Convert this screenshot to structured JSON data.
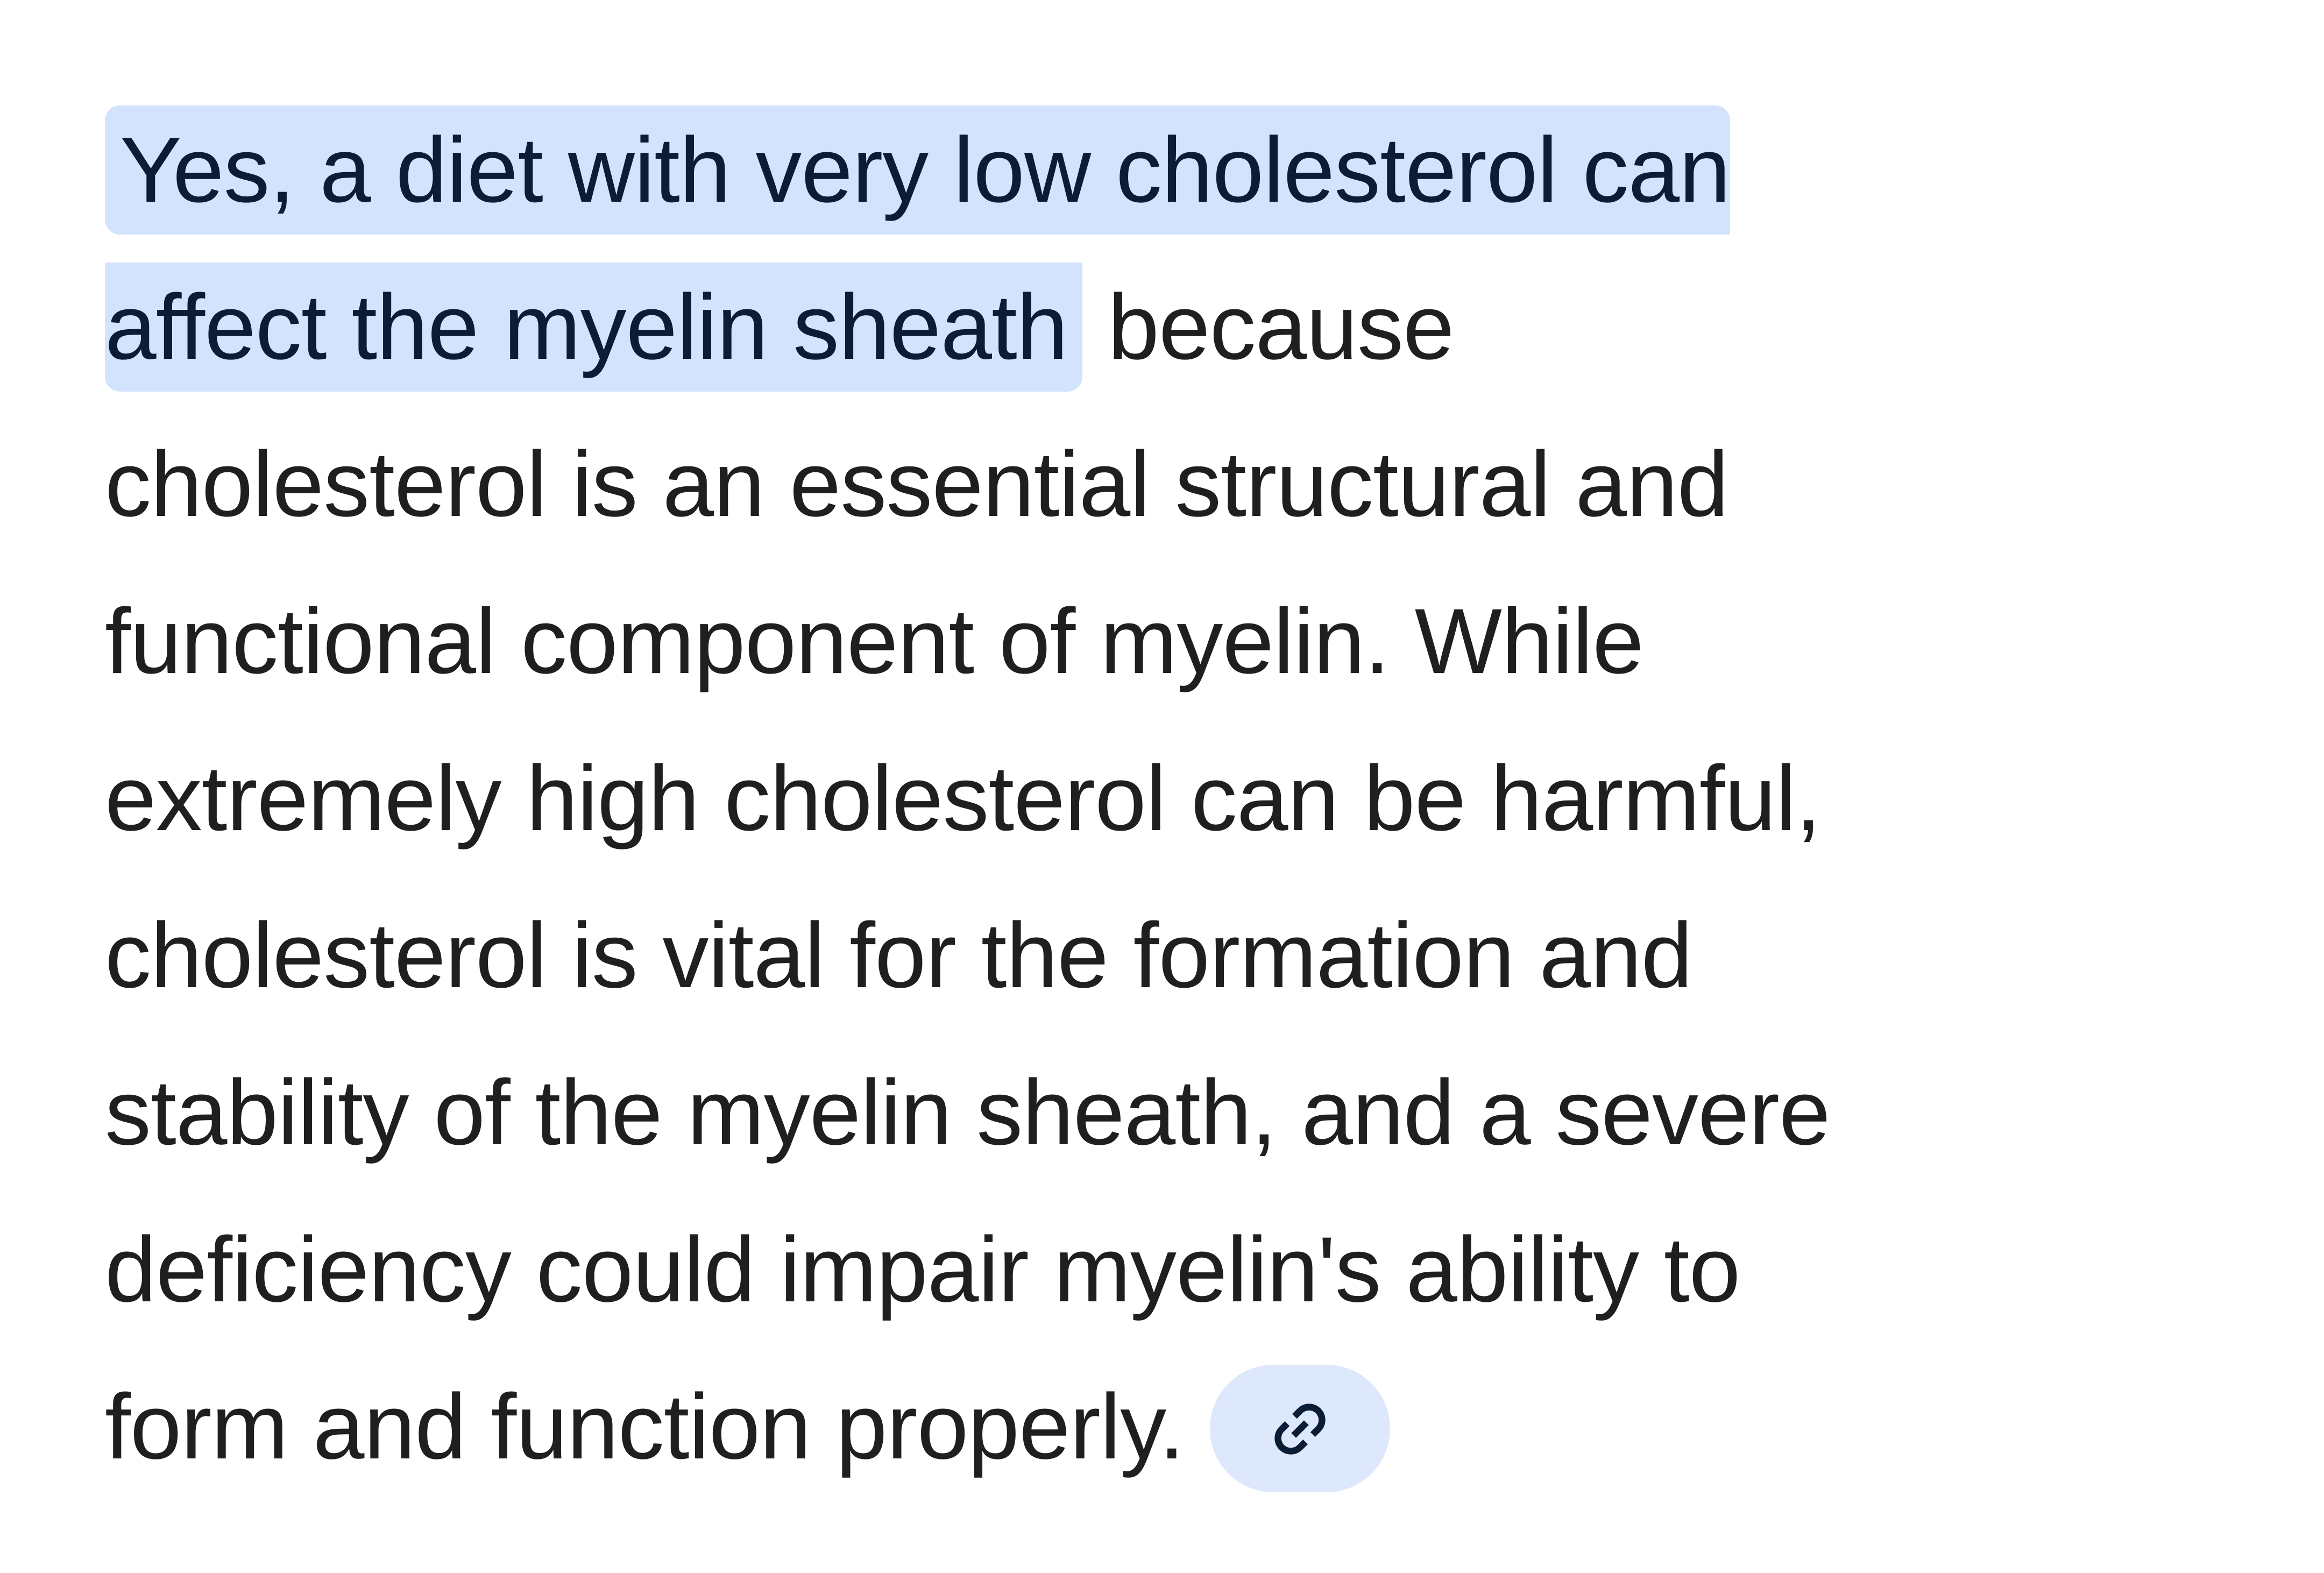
{
  "answer": {
    "highlighted_lines": [
      "Yes, a diet with very low cholesterol can",
      "affect the myelin sheath"
    ],
    "line2_rest": " because",
    "lines": [
      "cholesterol is an essential structural and",
      "functional component of myelin. While",
      "extremely high cholesterol can be harmful,",
      "cholesterol is vital for the formation and",
      "stability of the myelin sheath, and a severe",
      "deficiency could impair myelin's ability to",
      "form and function properly."
    ],
    "source_link": {
      "icon": "link-icon"
    },
    "colors": {
      "highlight": "#d3e3fd",
      "chip": "#dde8fc",
      "text": "#1f1f1f"
    }
  }
}
